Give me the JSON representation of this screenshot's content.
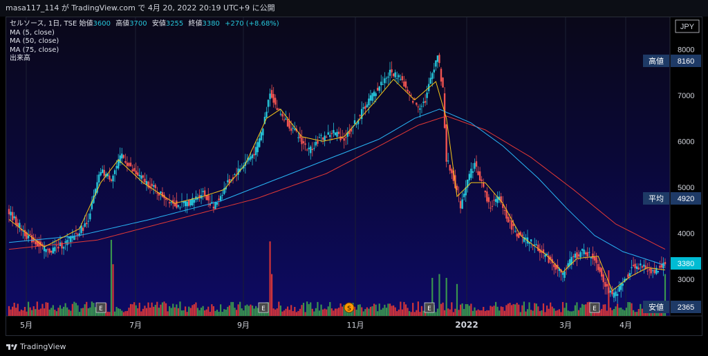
{
  "header": {
    "user": "masa117_114",
    "ga": "が",
    "site": "TradingView.com",
    "de": "で",
    "date": "4月 20, 2022 20:19 UTC+9",
    "published": "に公開"
  },
  "legend": {
    "symbol": "セルソース, 1日, TSE",
    "open_label": "始値",
    "open": "3600",
    "high_label": "高値",
    "high": "3700",
    "low_label": "安値",
    "low": "3255",
    "close_label": "終値",
    "close": "3380",
    "change": "+270 (+8.68%)",
    "indicators": [
      "MA (5, close)",
      "MA (50, close)",
      "MA (75, close)",
      "出来高"
    ]
  },
  "currency": "JPY",
  "brand": "TradingView",
  "colors": {
    "up": "#26a69a",
    "down": "#ef5350",
    "ma5": "#f5c518",
    "ma50": "#29b6f6",
    "ma75": "#e53935",
    "vol_up": "#3fa34d",
    "vol_down": "#e53935",
    "badge": "#1e3a66"
  },
  "chart_data": {
    "type": "candlestick",
    "symbol": "セルソース",
    "interval": "1日",
    "exchange": "TSE",
    "ylim": [
      2200,
      8700
    ],
    "y_ticks": [
      3000,
      4000,
      5000,
      6000,
      7000,
      8000
    ],
    "x_ticks": [
      "5月",
      "7月",
      "9月",
      "11月",
      "2022",
      "3月",
      "4月"
    ],
    "price_badges": [
      {
        "label": "高値",
        "value": "8160"
      },
      {
        "label": "平均",
        "value": "4920"
      },
      {
        "label": "",
        "value": "3380"
      },
      {
        "label": "安値",
        "value": "2365"
      }
    ],
    "event_markers": [
      "E",
      "E",
      "S",
      "E",
      "E"
    ],
    "close_path": [
      [
        0,
        4450
      ],
      [
        10,
        3950
      ],
      [
        22,
        3600
      ],
      [
        32,
        3780
      ],
      [
        44,
        4200
      ],
      [
        52,
        5350
      ],
      [
        58,
        5200
      ],
      [
        64,
        5700
      ],
      [
        70,
        5350
      ],
      [
        78,
        5100
      ],
      [
        86,
        4850
      ],
      [
        96,
        4600
      ],
      [
        104,
        4700
      ],
      [
        110,
        4900
      ],
      [
        116,
        4550
      ],
      [
        124,
        5100
      ],
      [
        132,
        5450
      ],
      [
        140,
        5800
      ],
      [
        144,
        6300
      ],
      [
        148,
        7100
      ],
      [
        152,
        6700
      ],
      [
        158,
        6400
      ],
      [
        164,
        6100
      ],
      [
        170,
        5800
      ],
      [
        176,
        6050
      ],
      [
        184,
        6200
      ],
      [
        190,
        6050
      ],
      [
        198,
        6500
      ],
      [
        204,
        6900
      ],
      [
        210,
        7200
      ],
      [
        216,
        7500
      ],
      [
        222,
        7400
      ],
      [
        226,
        7050
      ],
      [
        232,
        6750
      ],
      [
        236,
        6900
      ],
      [
        240,
        7500
      ],
      [
        243,
        7900
      ],
      [
        246,
        7100
      ],
      [
        248,
        5600
      ],
      [
        252,
        5200
      ],
      [
        256,
        4600
      ],
      [
        260,
        5200
      ],
      [
        264,
        5500
      ],
      [
        268,
        5100
      ],
      [
        272,
        4600
      ],
      [
        278,
        4750
      ],
      [
        284,
        4200
      ],
      [
        290,
        3900
      ],
      [
        296,
        3800
      ],
      [
        302,
        3600
      ],
      [
        308,
        3350
      ],
      [
        314,
        3100
      ],
      [
        320,
        3500
      ],
      [
        326,
        3600
      ],
      [
        332,
        3450
      ],
      [
        338,
        2900
      ],
      [
        342,
        2600
      ],
      [
        348,
        2900
      ],
      [
        354,
        3300
      ],
      [
        360,
        3250
      ],
      [
        366,
        3150
      ],
      [
        372,
        3380
      ]
    ],
    "ma5_path": [
      [
        0,
        4300
      ],
      [
        20,
        3700
      ],
      [
        40,
        4100
      ],
      [
        52,
        5100
      ],
      [
        62,
        5600
      ],
      [
        76,
        5100
      ],
      [
        94,
        4650
      ],
      [
        110,
        4800
      ],
      [
        122,
        4950
      ],
      [
        134,
        5500
      ],
      [
        146,
        6500
      ],
      [
        154,
        6700
      ],
      [
        166,
        6100
      ],
      [
        178,
        6000
      ],
      [
        190,
        6100
      ],
      [
        206,
        6800
      ],
      [
        218,
        7350
      ],
      [
        230,
        6900
      ],
      [
        242,
        7300
      ],
      [
        248,
        6500
      ],
      [
        254,
        4800
      ],
      [
        262,
        5100
      ],
      [
        270,
        5100
      ],
      [
        280,
        4650
      ],
      [
        290,
        3950
      ],
      [
        304,
        3550
      ],
      [
        314,
        3150
      ],
      [
        322,
        3450
      ],
      [
        334,
        3500
      ],
      [
        342,
        2750
      ],
      [
        352,
        3050
      ],
      [
        362,
        3250
      ],
      [
        372,
        3200
      ]
    ],
    "ma50_path": [
      [
        0,
        3800
      ],
      [
        40,
        3950
      ],
      [
        80,
        4300
      ],
      [
        120,
        4700
      ],
      [
        150,
        5150
      ],
      [
        180,
        5600
      ],
      [
        210,
        6050
      ],
      [
        230,
        6500
      ],
      [
        244,
        6700
      ],
      [
        262,
        6400
      ],
      [
        280,
        5900
      ],
      [
        300,
        5200
      ],
      [
        316,
        4550
      ],
      [
        332,
        3950
      ],
      [
        348,
        3600
      ],
      [
        372,
        3300
      ]
    ],
    "ma75_path": [
      [
        0,
        3650
      ],
      [
        50,
        3850
      ],
      [
        100,
        4350
      ],
      [
        140,
        4750
      ],
      [
        180,
        5300
      ],
      [
        210,
        5900
      ],
      [
        232,
        6350
      ],
      [
        248,
        6550
      ],
      [
        270,
        6250
      ],
      [
        296,
        5650
      ],
      [
        320,
        4950
      ],
      [
        344,
        4200
      ],
      [
        372,
        3650
      ]
    ],
    "volume_spikes": [
      {
        "bar": 58,
        "rel": 1.0,
        "up": true
      },
      {
        "bar": 59,
        "rel": 0.68,
        "up": false
      },
      {
        "bar": 148,
        "rel": 0.98,
        "up": false
      },
      {
        "bar": 149,
        "rel": 0.55,
        "up": false
      },
      {
        "bar": 240,
        "rel": 0.5,
        "up": true
      },
      {
        "bar": 244,
        "rel": 0.55,
        "up": true
      },
      {
        "bar": 248,
        "rel": 0.5,
        "up": true
      },
      {
        "bar": 254,
        "rel": 0.42,
        "up": true
      },
      {
        "bar": 340,
        "rel": 0.6,
        "up": false
      },
      {
        "bar": 372,
        "rel": 0.55,
        "up": true
      }
    ]
  }
}
